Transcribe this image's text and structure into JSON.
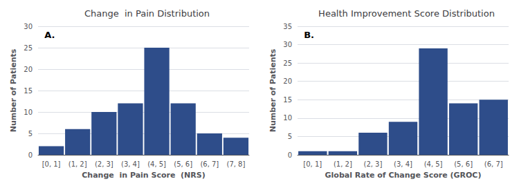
{
  "chart_data": [
    {
      "type": "bar",
      "title": "Change  in Pain Distribution",
      "xlabel": "Change  in Pain Score  (NRS)",
      "ylabel": "Number of Patients",
      "categories": [
        "[0, 1]",
        "(1, 2]",
        "(2, 3]",
        "(3, 4]",
        "(4, 5]",
        "(5, 6]",
        "(6, 7]",
        "(7, 8]"
      ],
      "values": [
        2,
        6,
        10,
        12,
        25,
        12,
        5,
        4
      ],
      "ylim": [
        0,
        30
      ],
      "yticks": [
        0,
        5,
        10,
        15,
        20,
        25,
        30
      ],
      "annotation": "A.",
      "color": "#2e4d8a",
      "grid": true
    },
    {
      "type": "bar",
      "title": "Health Improvement Score Distribution",
      "xlabel": "Global Rate of Change Score (GROC)",
      "ylabel": "Number of Patients",
      "categories": [
        "[0, 1]",
        "(1, 2]",
        "(2, 3]",
        "(3, 4]",
        "(4, 5]",
        "(5, 6]",
        "(6, 7]"
      ],
      "values": [
        1,
        1,
        6,
        9,
        29,
        14,
        15
      ],
      "ylim": [
        0,
        35
      ],
      "yticks": [
        0,
        5,
        10,
        15,
        20,
        25,
        30,
        35
      ],
      "annotation": "B.",
      "color": "#2e4d8a",
      "grid": true
    }
  ]
}
